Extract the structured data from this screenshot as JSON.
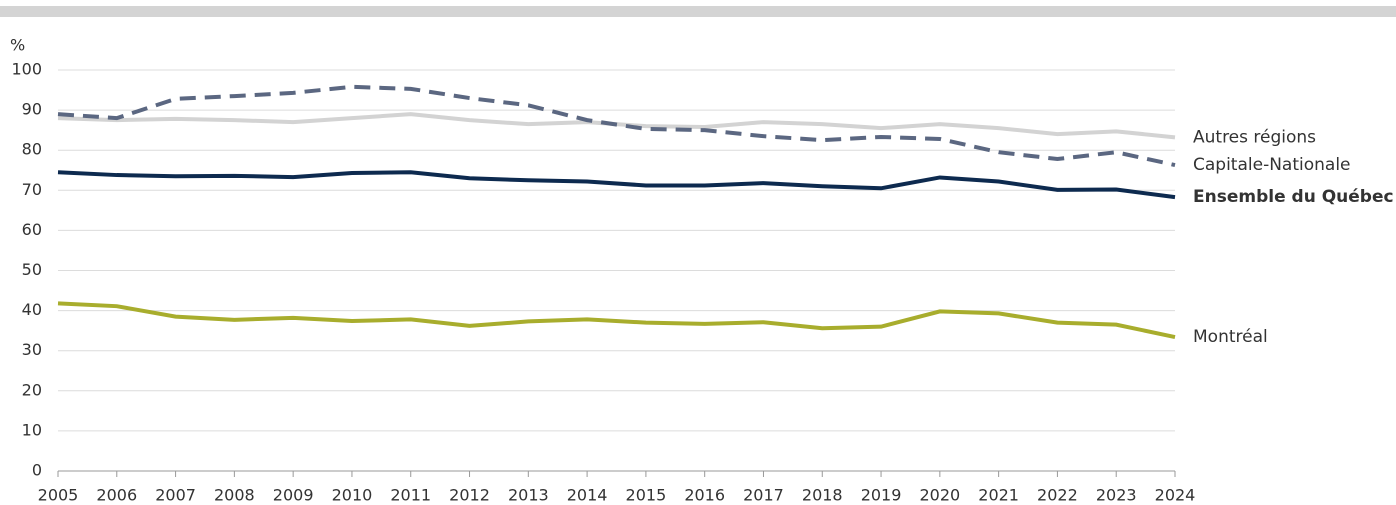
{
  "chart_data": {
    "type": "line",
    "y_unit": "%",
    "x": [
      2005,
      2006,
      2007,
      2008,
      2009,
      2010,
      2011,
      2012,
      2013,
      2014,
      2015,
      2016,
      2017,
      2018,
      2019,
      2020,
      2021,
      2022,
      2023,
      2024
    ],
    "xlim": [
      2005,
      2024
    ],
    "xticks": [
      2005,
      2006,
      2007,
      2008,
      2009,
      2010,
      2011,
      2012,
      2013,
      2014,
      2015,
      2016,
      2017,
      2018,
      2019,
      2020,
      2021,
      2022,
      2023,
      2024
    ],
    "ylim": [
      0,
      100
    ],
    "yticks": [
      0,
      10,
      20,
      30,
      40,
      50,
      60,
      70,
      80,
      90,
      100
    ],
    "grid": true,
    "series": [
      {
        "name": "Autres régions",
        "color": "#d3d3d3",
        "line_style": "solid",
        "label_weight": "normal",
        "values": [
          88,
          87.5,
          87.8,
          87.5,
          87,
          88,
          89,
          87.5,
          86.5,
          87,
          86,
          85.8,
          87,
          86.5,
          85.5,
          86.5,
          85.5,
          84,
          84.7,
          83.2
        ]
      },
      {
        "name": "Capitale-Nationale",
        "color": "#5b6781",
        "line_style": "dashed",
        "label_weight": "normal",
        "values": [
          89,
          88,
          92.8,
          93.5,
          94.3,
          95.8,
          95.3,
          93,
          91.2,
          87.5,
          85.3,
          85,
          83.5,
          82.5,
          83.3,
          82.8,
          79.5,
          77.8,
          79.5,
          76.3
        ]
      },
      {
        "name": "Ensemble du Québec",
        "color": "#0d2a4f",
        "line_style": "solid",
        "label_weight": "bold",
        "values": [
          74.5,
          73.8,
          73.5,
          73.6,
          73.3,
          74.3,
          74.5,
          73,
          72.5,
          72.2,
          71.2,
          71.2,
          71.8,
          71,
          70.5,
          73.2,
          72.2,
          70.1,
          70.2,
          68.3
        ]
      },
      {
        "name": "Montréal",
        "color": "#a8ad2d",
        "line_style": "solid",
        "label_weight": "normal",
        "values": [
          41.8,
          41.1,
          38.5,
          37.7,
          38.2,
          37.4,
          37.8,
          36.2,
          37.3,
          37.8,
          37,
          36.7,
          37.1,
          35.6,
          36,
          39.8,
          39.3,
          37,
          36.5,
          33.4
        ]
      }
    ]
  }
}
